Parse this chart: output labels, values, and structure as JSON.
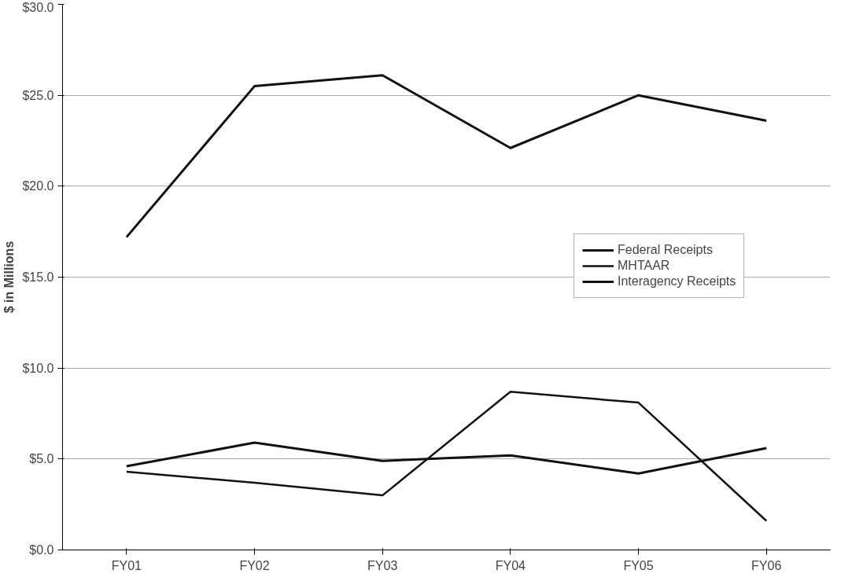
{
  "chart_data": {
    "type": "line",
    "ylabel": "$ in Millions",
    "categories": [
      "FY01",
      "FY02",
      "FY03",
      "FY04",
      "FY05",
      "FY06"
    ],
    "series": [
      {
        "name": "Federal Receipts",
        "color": "#111111",
        "values": [
          17.2,
          25.5,
          26.1,
          22.1,
          25.0,
          23.6
        ]
      },
      {
        "name": "MHTAAR",
        "color": "#111111",
        "values": [
          4.3,
          3.7,
          3.0,
          8.7,
          8.1,
          1.6
        ]
      },
      {
        "name": "Interagency Receipts",
        "color": "#111111",
        "values": [
          4.6,
          5.9,
          4.9,
          5.2,
          4.2,
          5.6
        ]
      }
    ],
    "ylim": [
      0,
      30
    ],
    "yticks": [
      {
        "value": 0,
        "label": "$0.0"
      },
      {
        "value": 5,
        "label": "$5.0"
      },
      {
        "value": 10,
        "label": "$10.0"
      },
      {
        "value": 15,
        "label": "$15.0"
      },
      {
        "value": 20,
        "label": "$20.0"
      },
      {
        "value": 25,
        "label": "$25.0"
      },
      {
        "value": 30,
        "label": "$30.0"
      }
    ],
    "grid": "y",
    "legend": "right",
    "line_style": "solid",
    "marker": "none"
  }
}
